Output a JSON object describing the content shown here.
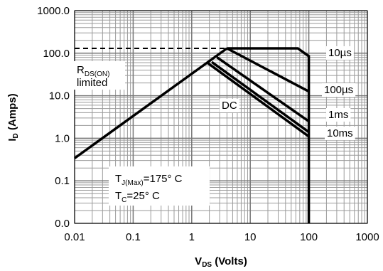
{
  "chart_data": {
    "type": "line",
    "xlabel": {
      "main": "V",
      "sub": "DS",
      "rest": " (Volts)"
    },
    "ylabel": {
      "main": "I",
      "sub": "D",
      "rest": " (Amps)"
    },
    "log_x": true,
    "log_y": true,
    "grid": true,
    "xlim": [
      0.01,
      1000
    ],
    "ylim": [
      0.01,
      1000
    ],
    "xticks": [
      0.01,
      0.1,
      1,
      10,
      100,
      1000
    ],
    "yticks": [
      {
        "value": 0.01,
        "label": "0.0"
      },
      0.1,
      {
        "value": 1,
        "label": "1.0"
      },
      {
        "value": 10,
        "label": "10.0"
      },
      {
        "value": 100,
        "label": "100.0"
      },
      {
        "value": 1000,
        "label": "1000.0"
      }
    ],
    "series": [
      {
        "color": "#000000",
        "x": [
          0.01,
          4
        ],
        "values": [
          0.34,
          130
        ]
      },
      {
        "color": "#000000",
        "dashed": true,
        "x": [
          0.01,
          4
        ],
        "values": [
          130,
          130
        ]
      },
      {
        "name": "10µs",
        "color": "#000000",
        "x": [
          4,
          65,
          100,
          100
        ],
        "values": [
          130,
          130,
          85,
          0.01
        ]
      },
      {
        "name": "100µs",
        "color": "#000000",
        "x": [
          4,
          100
        ],
        "values": [
          130,
          12.6
        ]
      },
      {
        "name": "1ms",
        "color": "#000000",
        "x": [
          2.7,
          100
        ],
        "values": [
          80,
          2.5
        ]
      },
      {
        "name": "10ms",
        "color": "#000000",
        "x": [
          2.2,
          100
        ],
        "values": [
          62,
          1.4
        ]
      },
      {
        "name": "DC",
        "color": "#000000",
        "x": [
          1.9,
          100
        ],
        "values": [
          58,
          1.1
        ]
      }
    ],
    "annotations": {
      "rds": {
        "main": "R",
        "sub": "DS(ON)",
        "line2": "limited"
      },
      "tj": {
        "main": "T",
        "sub": "J(Max)",
        "rest": "=175° C"
      },
      "tc": {
        "main": "T",
        "sub": "C",
        "rest": "=25° C"
      }
    }
  }
}
